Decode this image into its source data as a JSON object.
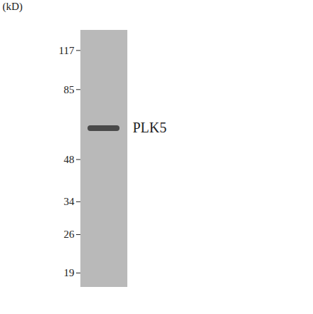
{
  "chart_data": {
    "type": "blot",
    "y_label": "(kD)",
    "categories": [
      "PLK5"
    ],
    "values": [
      62
    ],
    "ylim": [
      17,
      138
    ],
    "yticks": [
      117,
      85,
      48,
      34,
      26,
      19
    ],
    "log": "y",
    "color": "#4a4a4a"
  }
}
